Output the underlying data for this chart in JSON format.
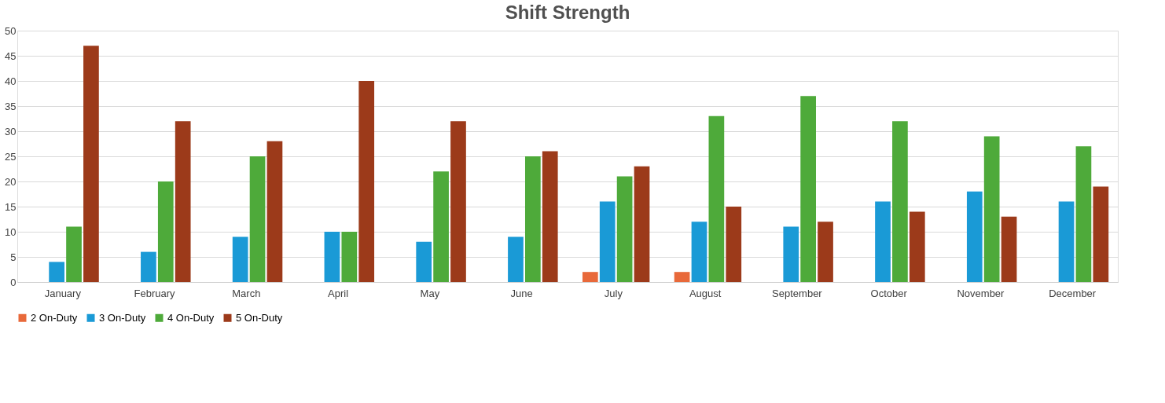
{
  "chart_data": {
    "type": "bar",
    "title": "Shift Strength",
    "categories": [
      "January",
      "February",
      "March",
      "April",
      "May",
      "June",
      "July",
      "August",
      "September",
      "October",
      "November",
      "December"
    ],
    "series": [
      {
        "name": "2 On-Duty",
        "color": "#e8693a",
        "values": [
          null,
          null,
          null,
          null,
          null,
          null,
          2,
          2,
          null,
          null,
          null,
          null
        ]
      },
      {
        "name": "3 On-Duty",
        "color": "#1a9ad6",
        "values": [
          4,
          6,
          9,
          10,
          8,
          9,
          16,
          12,
          11,
          16,
          18,
          16
        ]
      },
      {
        "name": "4 On-Duty",
        "color": "#4eaa3a",
        "values": [
          11,
          20,
          25,
          10,
          22,
          25,
          21,
          33,
          37,
          32,
          29,
          27
        ]
      },
      {
        "name": "5 On-Duty",
        "color": "#9c3a1a",
        "values": [
          47,
          32,
          28,
          40,
          32,
          26,
          23,
          15,
          12,
          14,
          13,
          19
        ]
      }
    ],
    "ylim": [
      0,
      50
    ],
    "yticks": [
      0,
      5,
      10,
      15,
      20,
      25,
      30,
      35,
      40,
      45,
      50
    ],
    "grid": "y",
    "legend": "bottom"
  }
}
